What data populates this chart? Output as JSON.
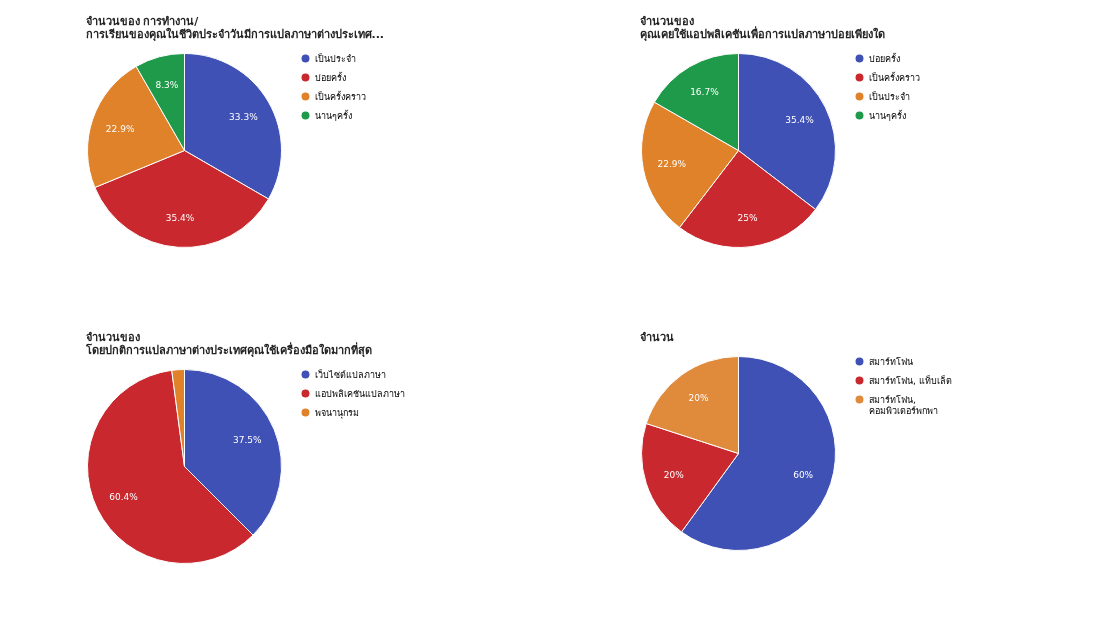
{
  "chart_data": [
    {
      "type": "pie",
      "title": "จำนวนของ การทำงาน/\nการเรียนของคุณในชีวิตประจำวันมีการแปลภาษาต่างประเทศ...",
      "categories": [
        "เป็นประจำ",
        "บ่อยครั้ง",
        "เป็นครั้งคราว",
        "นานๆครั้ง"
      ],
      "values": [
        33.3,
        35.4,
        22.9,
        8.3
      ],
      "value_labels": [
        "33.3%",
        "35.4%",
        "22.9%",
        "8.3%"
      ],
      "colors": [
        "#3f51b5",
        "#c8282e",
        "#e0822a",
        "#1f9a4a"
      ],
      "legend": "right"
    },
    {
      "type": "pie",
      "title": "จำนวนของ\nคุณเคยใช้แอปพลิเคชันเพื่อการแปลภาษาบ่อยเพียงใด",
      "categories": [
        "บ่อยครั้ง",
        "เป็นครั้งคราว",
        "เป็นประจำ",
        "นานๆครั้ง"
      ],
      "values": [
        35.4,
        25,
        22.9,
        16.7
      ],
      "value_labels": [
        "35.4%",
        "25%",
        "22.9%",
        "16.7%"
      ],
      "colors": [
        "#3f51b5",
        "#c8282e",
        "#e0822a",
        "#1f9a4a"
      ],
      "legend": "right"
    },
    {
      "type": "pie",
      "title": "จำนวนของ\nโดยปกติการแปลภาษาต่างประเทศคุณใช้เครื่องมือใดมากที่สุด",
      "categories": [
        "เว็บไซต์แปลภาษา",
        "แอปพลิเคชันแปลภาษา",
        "พจนานุกรม"
      ],
      "values": [
        37.5,
        60.4,
        2.1
      ],
      "value_labels": [
        "37.5%",
        "60.4%",
        null
      ],
      "colors": [
        "#3f51b5",
        "#c8282e",
        "#e0822a"
      ],
      "legend": "right"
    },
    {
      "type": "pie",
      "title": "จำนวน",
      "categories": [
        "สมาร์ทโฟน",
        "สมาร์ทโฟน, แท็บเล็ต",
        "สมาร์ทโฟน,\nคอมพิวเตอร์พกพา"
      ],
      "values": [
        60,
        20,
        20
      ],
      "value_labels": [
        "60%",
        "20%",
        "20%"
      ],
      "colors": [
        "#3f51b5",
        "#c8282e",
        "#e08a3c"
      ],
      "legend": "right"
    }
  ]
}
